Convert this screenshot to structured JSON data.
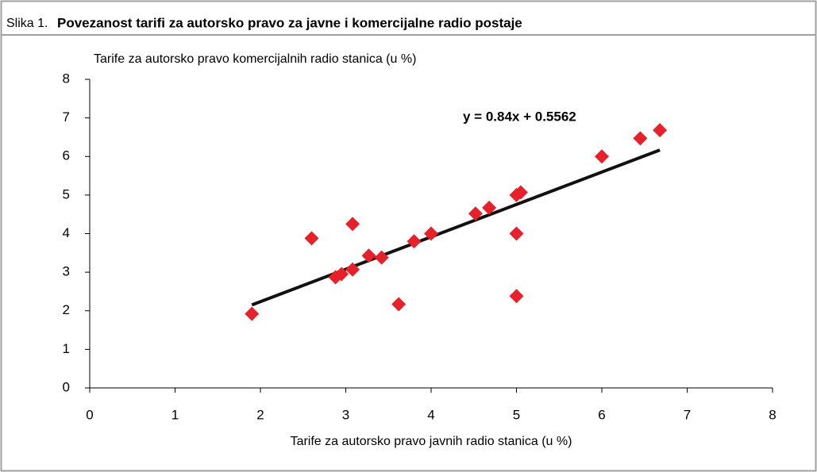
{
  "chart_data": {
    "type": "scatter",
    "figure_label": "Slika 1.",
    "title": "Povezanost tarifi za autorsko pravo za javne i komercijalne radio postaje",
    "y_label": "Tarife za autorsko pravo komercijalnih radio stanica (u %)",
    "x_label": "Tarife za autorsko pravo javnih radio stanica (u %)",
    "x": [
      1.9,
      2.6,
      2.88,
      2.95,
      3.08,
      3.08,
      3.27,
      3.42,
      3.62,
      3.8,
      4.0,
      4.52,
      4.68,
      5.0,
      5.05,
      5.0,
      5.0,
      6.0,
      6.45,
      6.68
    ],
    "values": [
      1.92,
      3.88,
      2.87,
      2.95,
      3.07,
      4.25,
      3.43,
      3.38,
      2.17,
      3.8,
      4.0,
      4.52,
      4.67,
      5.0,
      5.07,
      4.0,
      2.38,
      6.0,
      6.47,
      6.68
    ],
    "color": "#e8202a",
    "trendline": {
      "label": "y = 0.84x + 0.5562",
      "slope": 0.84,
      "intercept": 0.5562,
      "color": "#111111"
    },
    "xlim": [
      0,
      8
    ],
    "xticks": [
      0,
      1,
      2,
      3,
      4,
      5,
      6,
      7,
      8
    ],
    "ylim": [
      0,
      8
    ],
    "yticks": [
      0,
      1,
      2,
      3,
      4,
      5,
      6,
      7,
      8
    ],
    "grid": false
  }
}
